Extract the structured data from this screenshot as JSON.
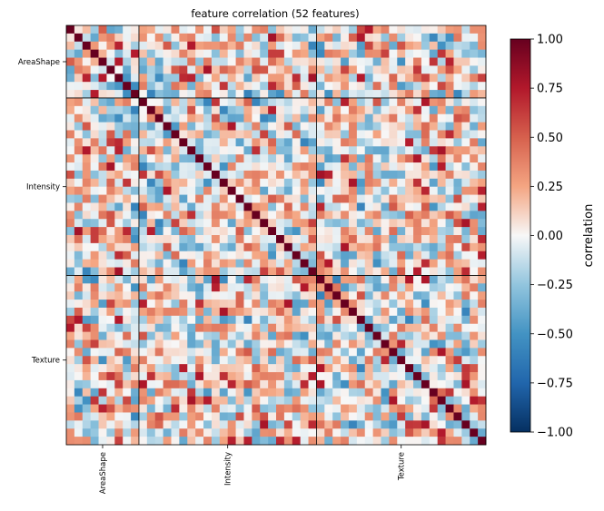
{
  "chart_data": {
    "type": "heatmap",
    "title": "feature correlation (52 features)",
    "n_features": 52,
    "groups": [
      {
        "name": "AreaShape",
        "size": 9
      },
      {
        "name": "Intensity",
        "size": 22
      },
      {
        "name": "Texture",
        "size": 21
      }
    ],
    "colorbar": {
      "label": "correlation",
      "range": [
        -1,
        1
      ],
      "ticks": [
        "1.00",
        "0.75",
        "0.50",
        "0.25",
        "0.00",
        "−0.25",
        "−0.50",
        "−0.75",
        "−1.00"
      ],
      "colormap": "RdBu_r",
      "colors": {
        "low": "#053061",
        "mid": "#f7f7f7",
        "high": "#67001f"
      }
    },
    "diagonal": 1.0,
    "off_diagonal_range": [
      -0.6,
      0.8
    ]
  }
}
